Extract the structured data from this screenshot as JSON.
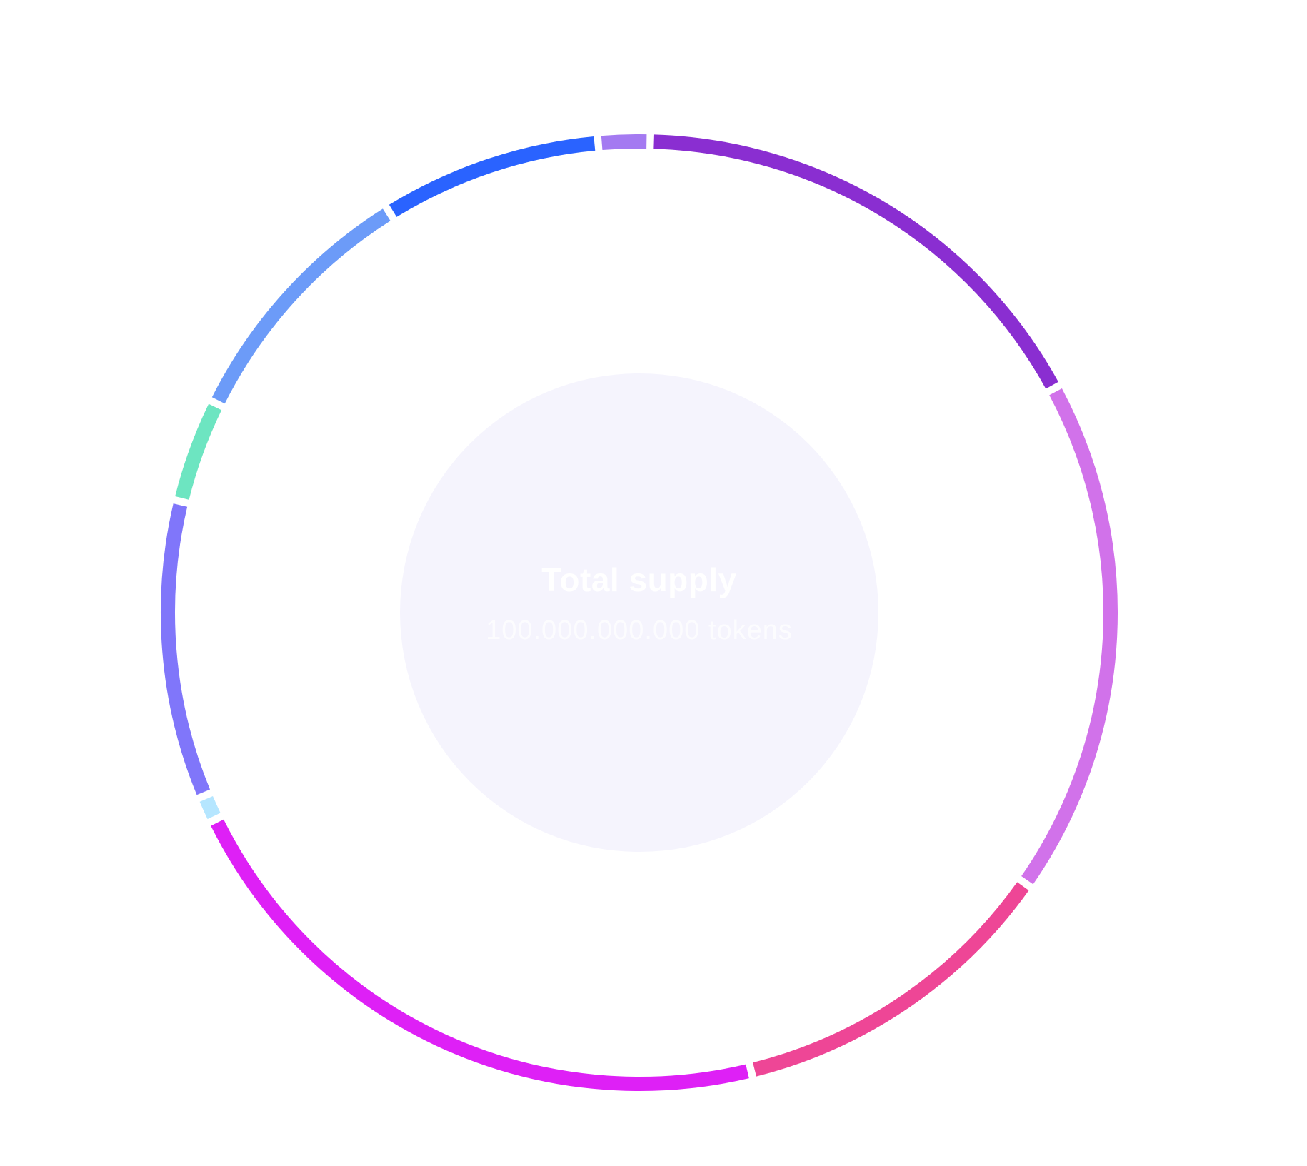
{
  "chart_data": {
    "type": "pie",
    "variant": "donut",
    "center_title": "Total supply",
    "center_subtitle": "100.000.000.000 tokens",
    "hole_color": "#F5F4FD",
    "start_angle_deg": -5,
    "slices": [
      {
        "value": 2.0,
        "color": "#A47AF1"
      },
      {
        "value": 19.0,
        "color": "#8A2ED1"
      },
      {
        "value": 20.0,
        "color": "#D172EA"
      },
      {
        "value": 13.0,
        "color": "#EE4696"
      },
      {
        "value": 24.5,
        "color": "#DE20F6"
      },
      {
        "value": 1.0,
        "color": "#B5E6FF"
      },
      {
        "value": 11.5,
        "color": "#8076FA"
      },
      {
        "value": 4.0,
        "color": "#6DE5C1"
      },
      {
        "value": 10.0,
        "color": "#6C9BF8"
      },
      {
        "value": 8.5,
        "color": "#2A63FF"
      }
    ]
  }
}
